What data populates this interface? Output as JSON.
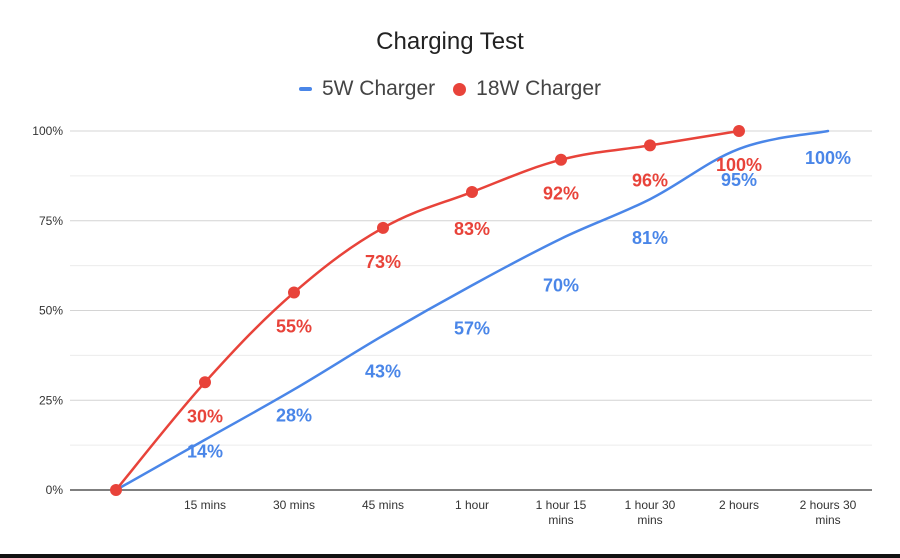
{
  "chart_data": {
    "type": "line",
    "title": "Charging Test",
    "xlabel": "",
    "ylabel": "",
    "categories": [
      "",
      "15 mins",
      "30 mins",
      "45 mins",
      "1 hour",
      "1 hour 15 mins",
      "1 hour 30 mins",
      "2 hours",
      "2 hours 30 mins"
    ],
    "y_ticks": [
      "0%",
      "25%",
      "50%",
      "75%",
      "100%"
    ],
    "ylim": [
      0,
      100
    ],
    "grid": true,
    "legend_position": "top",
    "series": [
      {
        "name": "5W Charger",
        "color": "#4a86e8",
        "marker": "none",
        "values": [
          0,
          14,
          28,
          43,
          57,
          70,
          81,
          95,
          100
        ],
        "labels": [
          "",
          "14%",
          "28%",
          "43%",
          "57%",
          "70%",
          "81%",
          "95%",
          "100%"
        ]
      },
      {
        "name": "18W Charger",
        "color": "#e8433a",
        "marker": "circle",
        "values": [
          0,
          30,
          55,
          73,
          83,
          92,
          96,
          100,
          null
        ],
        "labels": [
          "",
          "30%",
          "55%",
          "73%",
          "83%",
          "92%",
          "96%",
          "100%",
          ""
        ]
      }
    ]
  }
}
